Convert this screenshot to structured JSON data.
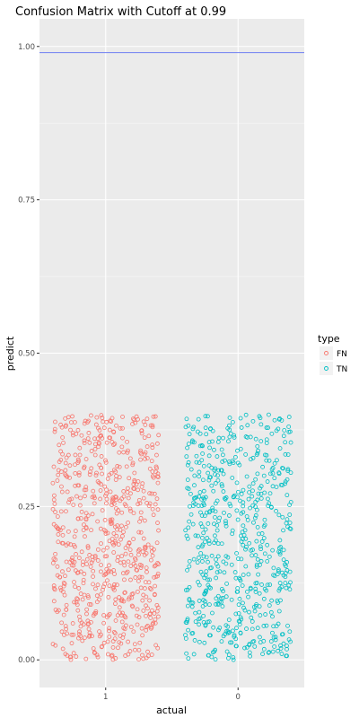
{
  "chart_data": {
    "type": "scatter",
    "title": "Confusion Matrix with Cutoff at 0.99",
    "xlabel": "actual",
    "ylabel": "predict",
    "categories": [
      "1",
      "0"
    ],
    "ylim": [
      -0.045,
      1.045
    ],
    "yticks": [
      0.0,
      0.25,
      0.5,
      0.75,
      1.0
    ],
    "ytick_labels": [
      "0.00",
      "0.25",
      "0.50",
      "0.75",
      "1.00"
    ],
    "cutoff": 0.99,
    "cutoff_color": "#6f7ff2",
    "grid": true,
    "panel_background": "#ebebeb",
    "legend": {
      "title": "type",
      "placement": "right",
      "entries": [
        {
          "label": "FN",
          "color": "#f8766d"
        },
        {
          "label": "TN",
          "color": "#00bfc4"
        }
      ]
    },
    "series": [
      {
        "name": "FN",
        "category": "1",
        "color": "#f8766d",
        "y_range": [
          0.0,
          0.4
        ],
        "x_jitter": 0.4,
        "count": 700
      },
      {
        "name": "TN",
        "category": "0",
        "color": "#00bfc4",
        "y_range": [
          0.0,
          0.4
        ],
        "x_jitter": 0.4,
        "count": 620
      }
    ]
  }
}
